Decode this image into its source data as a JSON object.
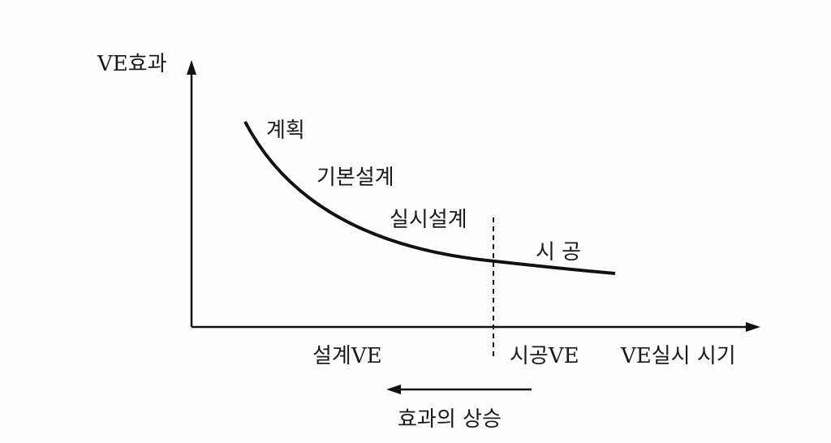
{
  "axes": {
    "y_label": "VE효과",
    "x_label": "VE실시 시기"
  },
  "curve_labels": [
    "계획",
    "기본설계",
    "실시설계",
    "시 공"
  ],
  "phases": [
    "설계VE",
    "시공VE"
  ],
  "arrow_label": "효과의 상승"
}
